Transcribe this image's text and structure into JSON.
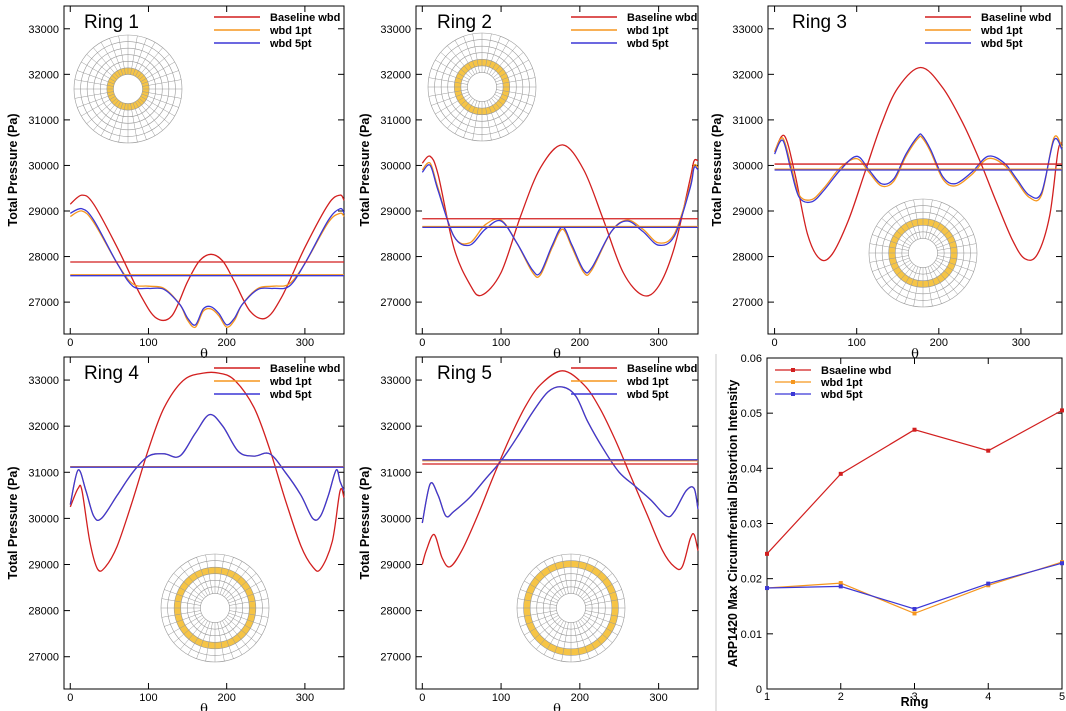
{
  "colors": {
    "baseline": "#d21f1f",
    "wbd1pt": "#f5961e",
    "wbd5pt": "#3b37d6",
    "ring_fill": "#f6c445"
  },
  "ring_panel_axes": {
    "xlabel": "θ",
    "ylabel": "Total Pressure (Pa)",
    "xticks": [
      "0",
      "100",
      "200",
      "300"
    ],
    "yticks": [
      "27000",
      "28000",
      "29000",
      "30000",
      "31000",
      "32000",
      "33000"
    ]
  },
  "chart_data": [
    {
      "type": "line",
      "title": "Ring 1",
      "xlim": [
        -8,
        350
      ],
      "ylim": [
        26300,
        33500
      ],
      "legend": "top-right",
      "series": [
        {
          "name": "Baseline wbd",
          "x": [
            0,
            15,
            30,
            60,
            90,
            110,
            130,
            150,
            165,
            180,
            195,
            210,
            230,
            250,
            270,
            300,
            330,
            345,
            350
          ],
          "y": [
            29150,
            29350,
            29150,
            28200,
            27150,
            26650,
            26700,
            27450,
            27900,
            28050,
            27900,
            27450,
            26800,
            26650,
            27100,
            28200,
            29150,
            29350,
            29230
          ]
        },
        {
          "name": "wbd 1pt",
          "x": [
            0,
            15,
            30,
            60,
            80,
            100,
            120,
            140,
            150,
            160,
            170,
            180,
            190,
            200,
            210,
            220,
            240,
            260,
            280,
            300,
            330,
            345,
            350
          ],
          "y": [
            28880,
            29000,
            28750,
            27850,
            27400,
            27350,
            27300,
            26950,
            26600,
            26450,
            26800,
            26850,
            26700,
            26450,
            26600,
            26950,
            27300,
            27350,
            27400,
            27850,
            28750,
            28950,
            28880
          ]
        },
        {
          "name": "wbd 5pt",
          "x": [
            0,
            15,
            30,
            60,
            80,
            100,
            120,
            140,
            150,
            160,
            170,
            180,
            190,
            200,
            210,
            220,
            240,
            260,
            280,
            300,
            330,
            345,
            350
          ],
          "y": [
            28950,
            29050,
            28800,
            27850,
            27350,
            27300,
            27280,
            26950,
            26650,
            26500,
            26850,
            26900,
            26750,
            26500,
            26650,
            26950,
            27280,
            27300,
            27350,
            27850,
            28800,
            29050,
            28950
          ]
        },
        {
          "name": "",
          "x": [
            0,
            350
          ],
          "y": [
            27880,
            27880
          ],
          "color": "baseline"
        },
        {
          "name": "",
          "x": [
            0,
            350
          ],
          "y": [
            27600,
            27600
          ],
          "color": "wbd1pt"
        },
        {
          "name": "",
          "x": [
            0,
            350
          ],
          "y": [
            27580,
            27580
          ],
          "color": "wbd5pt"
        }
      ]
    },
    {
      "type": "line",
      "title": "Ring 2",
      "xlim": [
        -8,
        350
      ],
      "ylim": [
        26300,
        33500
      ],
      "legend": "top-right",
      "series": [
        {
          "name": "Baseline wbd",
          "x": [
            0,
            10,
            20,
            40,
            60,
            75,
            100,
            125,
            150,
            178,
            205,
            230,
            255,
            280,
            300,
            320,
            340,
            345,
            350
          ],
          "y": [
            30050,
            30200,
            29800,
            28200,
            27400,
            27150,
            27650,
            28900,
            29950,
            30450,
            29900,
            28800,
            27650,
            27150,
            27350,
            28200,
            29700,
            30100,
            30100
          ]
        },
        {
          "name": "wbd 1pt",
          "x": [
            0,
            10,
            20,
            40,
            60,
            80,
            100,
            120,
            140,
            150,
            165,
            178,
            190,
            205,
            215,
            240,
            260,
            280,
            300,
            320,
            340,
            345,
            350
          ],
          "y": [
            29900,
            30050,
            29500,
            28450,
            28300,
            28700,
            28800,
            28300,
            27650,
            27600,
            28200,
            28600,
            28200,
            27650,
            27700,
            28550,
            28800,
            28600,
            28300,
            28500,
            29550,
            30000,
            29950
          ]
        },
        {
          "name": "wbd 5pt",
          "x": [
            0,
            10,
            20,
            40,
            60,
            80,
            100,
            120,
            140,
            150,
            165,
            178,
            190,
            205,
            215,
            240,
            260,
            280,
            300,
            320,
            340,
            345,
            350
          ],
          "y": [
            29850,
            30000,
            29450,
            28450,
            28250,
            28600,
            28780,
            28300,
            27700,
            27650,
            28250,
            28650,
            28250,
            27700,
            27750,
            28550,
            28780,
            28550,
            28250,
            28450,
            29500,
            29950,
            29900
          ]
        },
        {
          "name": "",
          "x": [
            0,
            350
          ],
          "y": [
            28830,
            28830
          ],
          "color": "baseline"
        },
        {
          "name": "",
          "x": [
            0,
            350
          ],
          "y": [
            28660,
            28660
          ],
          "color": "wbd1pt"
        },
        {
          "name": "",
          "x": [
            0,
            350
          ],
          "y": [
            28640,
            28640
          ],
          "color": "wbd5pt"
        }
      ]
    },
    {
      "type": "line",
      "title": "Ring 3",
      "xlim": [
        -8,
        350
      ],
      "ylim": [
        26300,
        33500
      ],
      "legend": "top-right",
      "series": [
        {
          "name": "Baseline wbd",
          "x": [
            0,
            12,
            25,
            40,
            55,
            70,
            90,
            110,
            130,
            150,
            178,
            205,
            230,
            250,
            270,
            290,
            305,
            320,
            335,
            345,
            350
          ],
          "y": [
            30300,
            30650,
            29800,
            28500,
            27950,
            28050,
            28800,
            29850,
            30900,
            31700,
            32150,
            31700,
            30900,
            30100,
            29200,
            28350,
            27950,
            28050,
            28900,
            30300,
            30500
          ]
        },
        {
          "name": "wbd 1pt",
          "x": [
            0,
            10,
            20,
            30,
            45,
            60,
            80,
            100,
            115,
            130,
            145,
            160,
            175,
            180,
            190,
            205,
            220,
            240,
            260,
            280,
            295,
            310,
            325,
            340,
            350
          ],
          "y": [
            30300,
            30600,
            30000,
            29350,
            29250,
            29500,
            29950,
            30150,
            29850,
            29550,
            29650,
            30200,
            30600,
            30600,
            30300,
            29700,
            29550,
            29800,
            30150,
            30000,
            29650,
            29300,
            29350,
            30600,
            30400
          ]
        },
        {
          "name": "wbd 5pt",
          "x": [
            0,
            10,
            20,
            30,
            45,
            60,
            80,
            100,
            115,
            130,
            145,
            160,
            175,
            180,
            190,
            205,
            220,
            240,
            260,
            280,
            295,
            310,
            325,
            340,
            350
          ],
          "y": [
            30250,
            30550,
            29900,
            29300,
            29200,
            29450,
            29900,
            30200,
            29900,
            29600,
            29700,
            30250,
            30650,
            30650,
            30350,
            29750,
            29600,
            29850,
            30200,
            30050,
            29700,
            29350,
            29400,
            30550,
            30350
          ]
        },
        {
          "name": "",
          "x": [
            0,
            350
          ],
          "y": [
            30030,
            30030
          ],
          "color": "baseline"
        },
        {
          "name": "",
          "x": [
            0,
            350
          ],
          "y": [
            29920,
            29920
          ],
          "color": "wbd1pt"
        },
        {
          "name": "",
          "x": [
            0,
            350
          ],
          "y": [
            29900,
            29900
          ],
          "color": "wbd5pt"
        }
      ]
    },
    {
      "type": "line",
      "title": "Ring 4",
      "xlim": [
        -8,
        350
      ],
      "ylim": [
        26300,
        33500
      ],
      "legend": "top-right",
      "series": [
        {
          "name": "Baseline wbd",
          "x": [
            0,
            10,
            15,
            25,
            35,
            45,
            60,
            80,
            100,
            120,
            145,
            170,
            190,
            210,
            235,
            255,
            275,
            295,
            310,
            320,
            335,
            345,
            350
          ],
          "y": [
            30250,
            30650,
            30600,
            29500,
            28900,
            28950,
            29400,
            30400,
            31500,
            32400,
            33000,
            33150,
            33150,
            33000,
            32400,
            31500,
            30400,
            29400,
            28950,
            28900,
            29500,
            30600,
            30450
          ]
        },
        {
          "name": "wbd 1pt",
          "x": [
            0,
            10,
            20,
            30,
            40,
            60,
            80,
            100,
            120,
            140,
            160,
            178,
            195,
            215,
            235,
            255,
            275,
            295,
            310,
            320,
            330,
            340,
            345,
            350
          ],
          "y": [
            30300,
            31050,
            30600,
            30050,
            30000,
            30500,
            31000,
            31350,
            31400,
            31350,
            31850,
            32250,
            32000,
            31450,
            31350,
            31400,
            31000,
            30500,
            30000,
            30050,
            30500,
            31050,
            30800,
            30600
          ]
        },
        {
          "name": "wbd 5pt",
          "x": [
            0,
            10,
            20,
            30,
            40,
            60,
            80,
            100,
            120,
            140,
            160,
            178,
            195,
            215,
            235,
            255,
            275,
            295,
            310,
            320,
            330,
            340,
            345,
            350
          ],
          "y": [
            30300,
            31050,
            30600,
            30050,
            30000,
            30500,
            31000,
            31350,
            31400,
            31350,
            31850,
            32250,
            32000,
            31450,
            31350,
            31400,
            31000,
            30500,
            30000,
            30050,
            30500,
            31050,
            30800,
            30600
          ]
        },
        {
          "name": "",
          "x": [
            0,
            350
          ],
          "y": [
            31120,
            31120
          ],
          "color": "baseline"
        },
        {
          "name": "",
          "x": [
            0,
            350
          ],
          "y": [
            31120,
            31120
          ],
          "color": "wbd1pt"
        },
        {
          "name": "",
          "x": [
            0,
            350
          ],
          "y": [
            31110,
            31110
          ],
          "color": "wbd5pt"
        }
      ]
    },
    {
      "type": "line",
      "title": "Ring 5",
      "xlim": [
        -8,
        350
      ],
      "ylim": [
        26300,
        33500
      ],
      "legend": "top-right",
      "series": [
        {
          "name": "Baseline wbd",
          "x": [
            0,
            5,
            15,
            25,
            35,
            50,
            70,
            90,
            110,
            130,
            150,
            178,
            205,
            225,
            245,
            265,
            285,
            305,
            320,
            330,
            340,
            345,
            350
          ],
          "y": [
            29000,
            29300,
            29650,
            29150,
            28950,
            29300,
            30050,
            30900,
            31700,
            32400,
            32900,
            33200,
            32900,
            32400,
            31700,
            30900,
            30100,
            29300,
            28950,
            28950,
            29550,
            29650,
            29300
          ]
        },
        {
          "name": "wbd 1pt",
          "x": [
            0,
            10,
            20,
            30,
            40,
            60,
            80,
            100,
            120,
            140,
            160,
            178,
            195,
            210,
            230,
            250,
            270,
            290,
            310,
            320,
            335,
            345,
            350
          ],
          "y": [
            29900,
            30750,
            30500,
            30050,
            30150,
            30450,
            30850,
            31250,
            31750,
            32300,
            32750,
            32850,
            32650,
            32100,
            31500,
            31000,
            30700,
            30400,
            30050,
            30150,
            30600,
            30650,
            30200
          ]
        },
        {
          "name": "wbd 5pt",
          "x": [
            0,
            10,
            20,
            30,
            40,
            60,
            80,
            100,
            120,
            140,
            160,
            178,
            195,
            210,
            230,
            250,
            270,
            290,
            310,
            320,
            335,
            345,
            350
          ],
          "y": [
            29900,
            30750,
            30500,
            30050,
            30150,
            30450,
            30850,
            31250,
            31750,
            32300,
            32750,
            32850,
            32650,
            32100,
            31500,
            31000,
            30700,
            30400,
            30050,
            30150,
            30600,
            30650,
            30200
          ]
        },
        {
          "name": "",
          "x": [
            0,
            350
          ],
          "y": [
            31180,
            31180
          ],
          "color": "baseline"
        },
        {
          "name": "",
          "x": [
            0,
            350
          ],
          "y": [
            31250,
            31250
          ],
          "color": "wbd1pt"
        },
        {
          "name": "",
          "x": [
            0,
            350
          ],
          "y": [
            31270,
            31270
          ],
          "color": "wbd5pt"
        }
      ]
    },
    {
      "type": "line",
      "title": "",
      "xlabel": "Ring",
      "ylabel": "ARP1420 Max Circumfrential Distortion Intensity",
      "xlim": [
        1,
        5
      ],
      "ylim": [
        0,
        0.06
      ],
      "xticks": [
        "1",
        "2",
        "3",
        "4",
        "5"
      ],
      "yticks": [
        "0",
        "0.01",
        "0.02",
        "0.03",
        "0.04",
        "0.05",
        "0.06"
      ],
      "legend": "top-left",
      "series": [
        {
          "name": "Bsaeline wbd",
          "x": [
            1,
            2,
            3,
            4,
            5
          ],
          "y": [
            0.0245,
            0.039,
            0.047,
            0.0432,
            0.0505
          ]
        },
        {
          "name": "wbd 1pt",
          "x": [
            1,
            2,
            3,
            4,
            5
          ],
          "y": [
            0.0183,
            0.0192,
            0.0137,
            0.0188,
            0.023
          ]
        },
        {
          "name": "wbd 5pt",
          "x": [
            1,
            2,
            3,
            4,
            5
          ],
          "y": [
            0.0183,
            0.0186,
            0.0145,
            0.0191,
            0.0228
          ]
        }
      ]
    }
  ]
}
